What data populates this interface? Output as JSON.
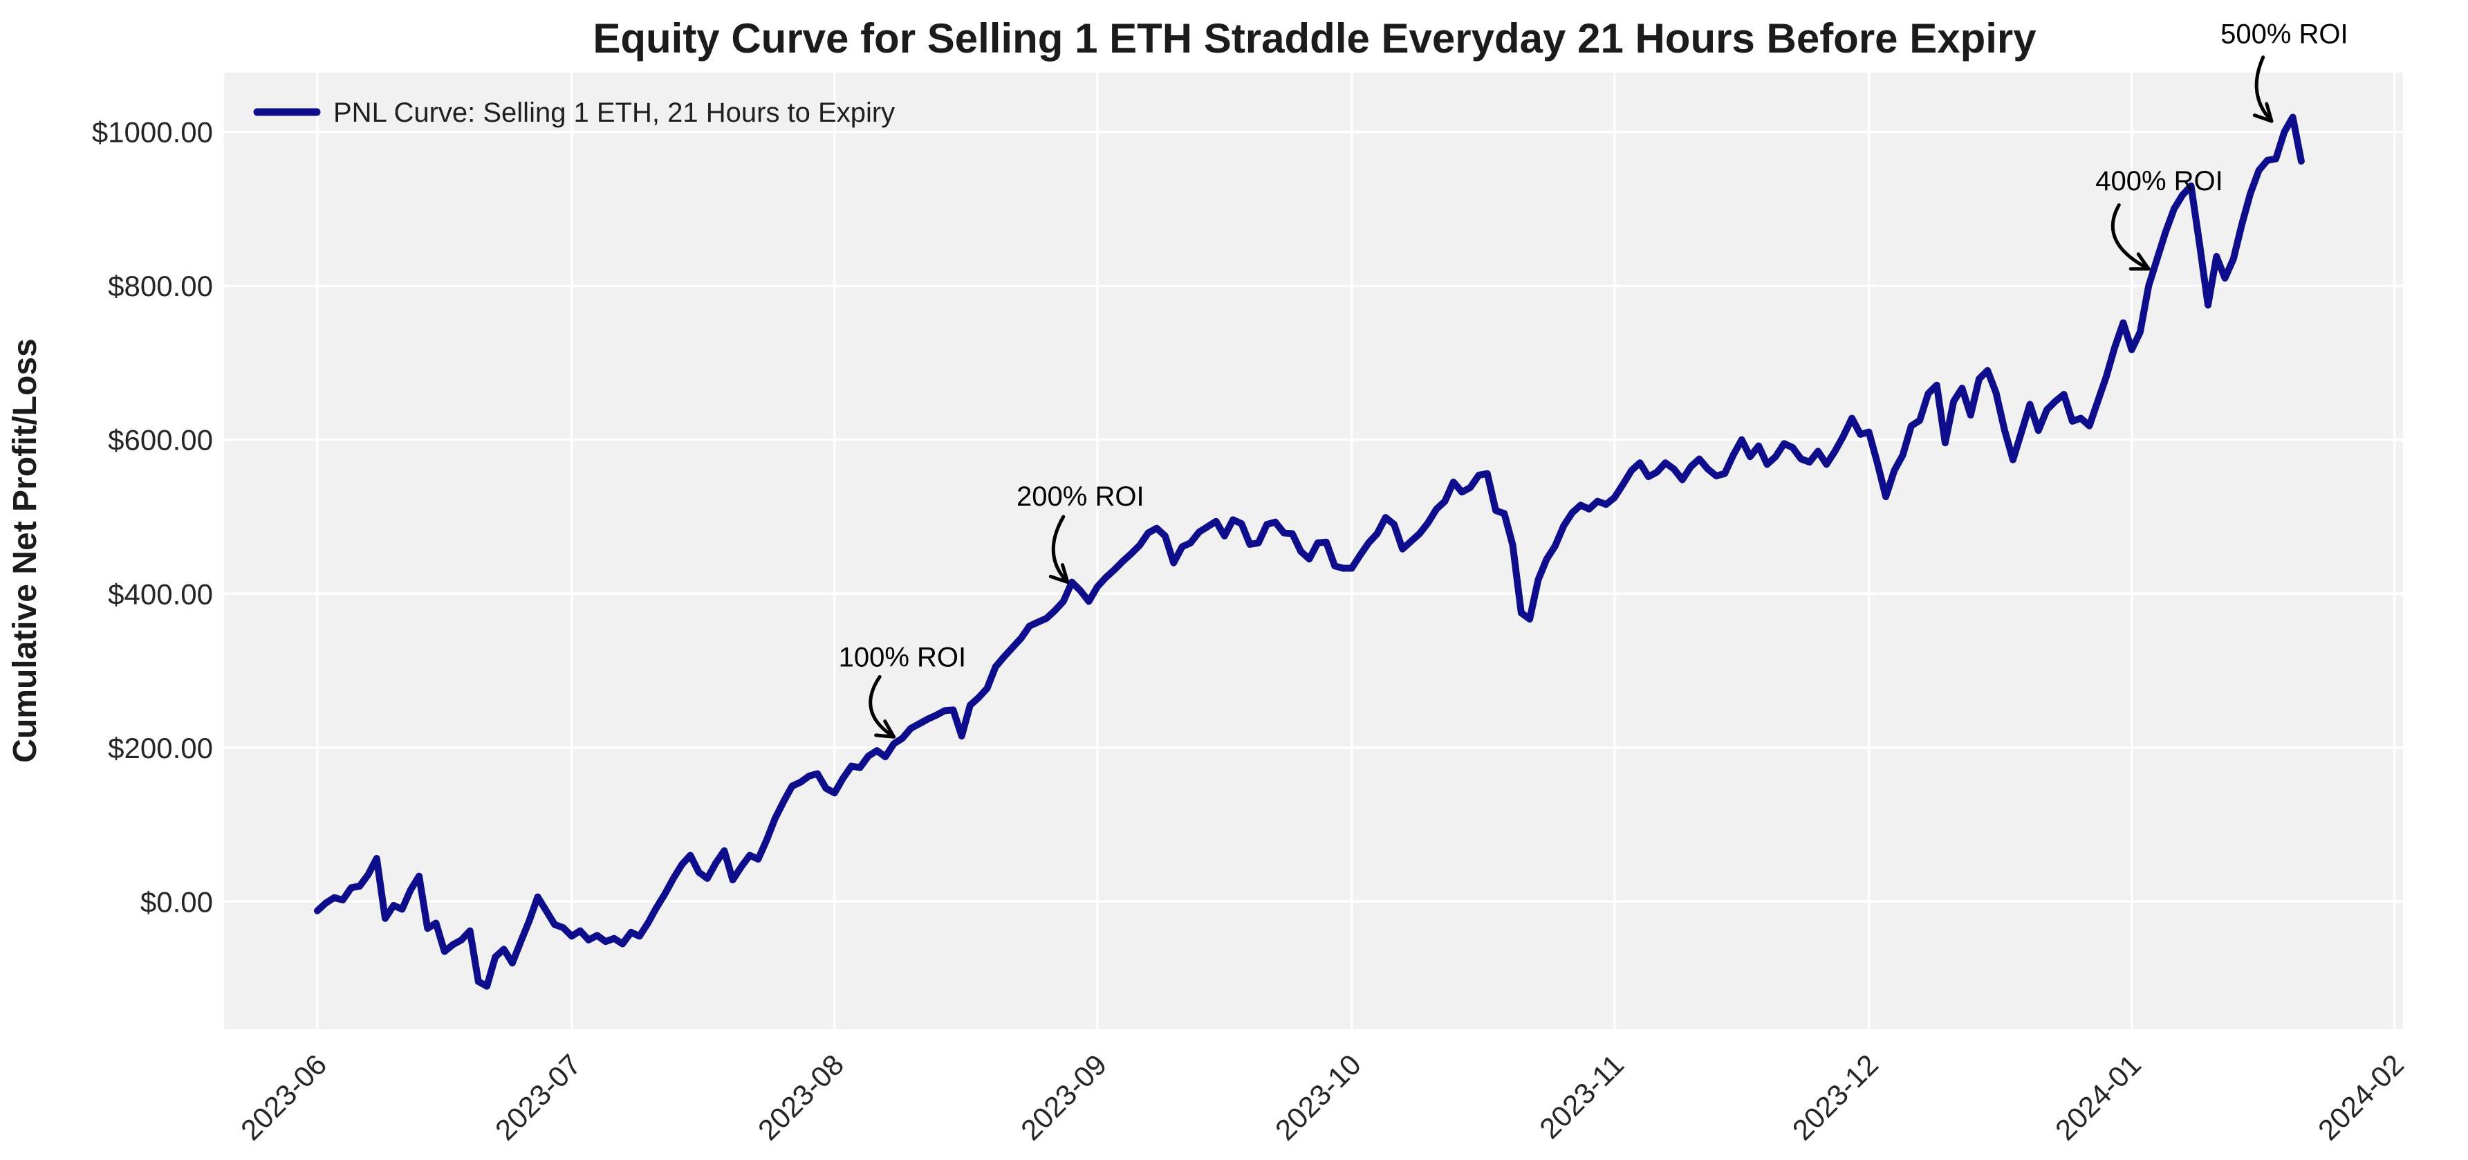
{
  "chart_data": {
    "type": "line",
    "title": "Equity Curve for Selling 1 ETH Straddle Everyday 21 Hours Before Expiry",
    "xlabel": "",
    "ylabel": "Cumulative Net Profit/Loss",
    "legend": {
      "position": "upper-left",
      "label": "PNL Curve: Selling 1 ETH, 21 Hours to Expiry"
    },
    "grid": true,
    "xlim": [
      "2023-05-21",
      "2024-02-02"
    ],
    "ylim": [
      -166,
      1077
    ],
    "y_ticks": [
      {
        "value": 0,
        "label": "$0.00"
      },
      {
        "value": 200,
        "label": "$200.00"
      },
      {
        "value": 400,
        "label": "$400.00"
      },
      {
        "value": 600,
        "label": "$600.00"
      },
      {
        "value": 800,
        "label": "$800.00"
      },
      {
        "value": 1000,
        "label": "$1000.00"
      }
    ],
    "x_ticks": [
      {
        "date": "2023-06-01",
        "label": "2023-06"
      },
      {
        "date": "2023-07-01",
        "label": "2023-07"
      },
      {
        "date": "2023-08-01",
        "label": "2023-08"
      },
      {
        "date": "2023-09-01",
        "label": "2023-09"
      },
      {
        "date": "2023-10-01",
        "label": "2023-10"
      },
      {
        "date": "2023-11-01",
        "label": "2023-11"
      },
      {
        "date": "2023-12-01",
        "label": "2023-12"
      },
      {
        "date": "2024-01-01",
        "label": "2024-01"
      },
      {
        "date": "2024-02-01",
        "label": "2024-02"
      }
    ],
    "colors": {
      "line": "#0e0e8c",
      "plot_bg": "#f1f1f1",
      "grid": "#ffffff",
      "tick_text": "#262626",
      "title_text": "#1b1b1b",
      "annotation": "#000000",
      "figure_bg": "#ffffff"
    },
    "series": [
      {
        "name": "PNL Curve: Selling 1 ETH, 21 Hours to Expiry",
        "start_date": "2023-06-01",
        "frequency": "daily",
        "unit": "USD",
        "values": [
          -12,
          -2,
          5,
          2,
          18,
          20,
          35,
          56,
          -22,
          -5,
          -10,
          15,
          33,
          -35,
          -28,
          -65,
          -56,
          -50,
          -38,
          -104,
          -110,
          -72,
          -62,
          -80,
          -52,
          -25,
          6,
          -12,
          -30,
          -34,
          -45,
          -38,
          -50,
          -44,
          -52,
          -48,
          -55,
          -40,
          -45,
          -28,
          -8,
          10,
          30,
          48,
          60,
          38,
          30,
          50,
          66,
          28,
          45,
          60,
          55,
          80,
          108,
          130,
          150,
          155,
          163,
          166,
          147,
          141,
          160,
          176,
          174,
          189,
          196,
          188,
          205,
          212,
          225,
          231,
          237,
          242,
          248,
          249,
          215,
          255,
          265,
          277,
          305,
          318,
          330,
          342,
          358,
          363,
          368,
          378,
          390,
          415,
          404,
          390,
          409,
          421,
          431,
          442,
          452,
          463,
          479,
          485,
          475,
          440,
          461,
          466,
          480,
          487,
          494,
          475,
          496,
          491,
          464,
          466,
          490,
          493,
          479,
          478,
          455,
          445,
          466,
          467,
          436,
          433,
          433,
          450,
          466,
          478,
          499,
          490,
          458,
          468,
          478,
          492,
          510,
          520,
          545,
          532,
          538,
          554,
          556,
          508,
          504,
          463,
          375,
          367,
          418,
          445,
          462,
          488,
          505,
          515,
          510,
          520,
          516,
          525,
          542,
          560,
          570,
          552,
          558,
          570,
          562,
          548,
          565,
          575,
          562,
          553,
          556,
          580,
          600,
          578,
          592,
          568,
          578,
          595,
          590,
          575,
          571,
          585,
          568,
          585,
          605,
          628,
          607,
          610,
          570,
          526,
          560,
          580,
          618,
          625,
          660,
          671,
          596,
          650,
          667,
          632,
          679,
          690,
          661,
          613,
          574,
          610,
          646,
          612,
          639,
          650,
          659,
          624,
          628,
          618,
          650,
          682,
          720,
          752,
          717,
          740,
          800,
          835,
          870,
          900,
          918,
          930,
          855,
          775,
          838,
          810,
          835,
          880,
          920,
          950,
          963,
          965,
          1000,
          1019,
          962
        ]
      }
    ],
    "annotations": [
      {
        "label": "100% ROI",
        "text_at": {
          "date": "2023-08-09",
          "value": 318
        },
        "arrow_from": {
          "date": "2023-08-06T08:00:00Z",
          "value": 292
        },
        "arrow_to": {
          "date": "2023-08-08",
          "value": 214
        },
        "bow": -45
      },
      {
        "label": "200% ROI",
        "text_at": {
          "date": "2023-08-30",
          "value": 527
        },
        "arrow_from": {
          "date": "2023-08-28",
          "value": 500
        },
        "arrow_to": {
          "date": "2023-08-28T12:00:00Z",
          "value": 415
        },
        "bow": -35
      },
      {
        "label": "400% ROI",
        "text_at": {
          "date": "2024-01-04T06:00:00Z",
          "value": 937
        },
        "arrow_from": {
          "date": "2023-12-30T12:00:00Z",
          "value": 905
        },
        "arrow_to": {
          "date": "2024-01-03",
          "value": 822
        },
        "bow": -52
      },
      {
        "label": "500% ROI",
        "text_at": {
          "date": "2024-01-19",
          "value": 1128
        },
        "arrow_from": {
          "date": "2024-01-16T12:00:00Z",
          "value": 1097
        },
        "arrow_to": {
          "date": "2024-01-17T12:00:00Z",
          "value": 1014
        },
        "bow": -30
      }
    ]
  }
}
